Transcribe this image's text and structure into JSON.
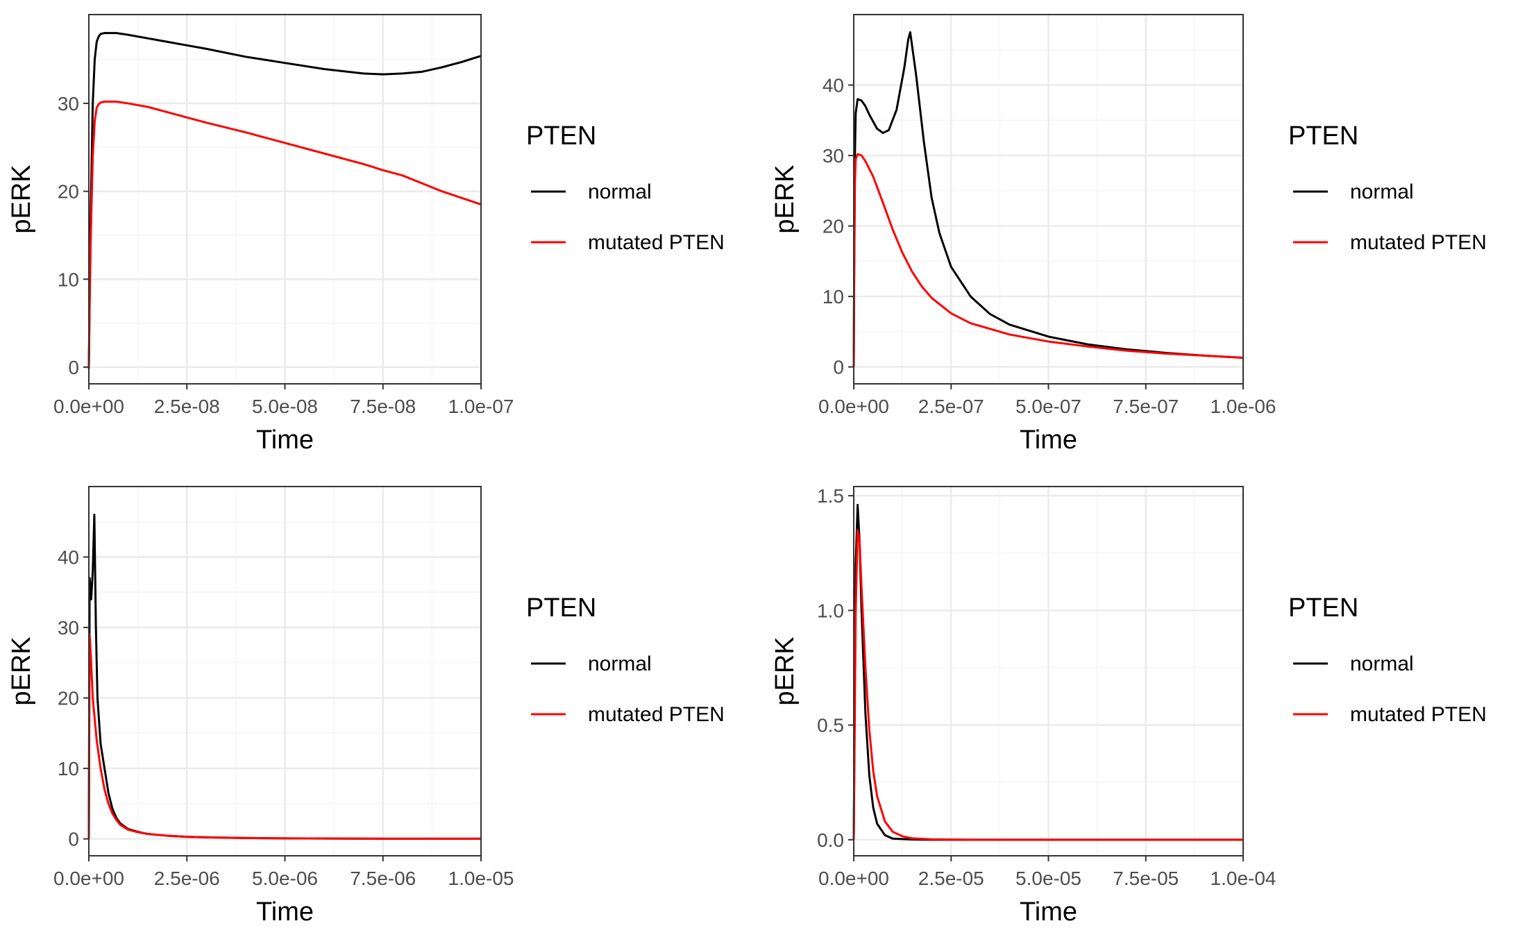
{
  "colors": {
    "normal": "#000000",
    "mutated_PTEN": "#ff0000",
    "panel_background": "#ffffff",
    "grid_major": "#ebebeb",
    "grid_minor": "#f5f5f5",
    "border": "#333333"
  },
  "chart_data": [
    {
      "type": "line",
      "xlabel": "Time",
      "ylabel": "pERK",
      "xlim": [
        0,
        1e-07
      ],
      "ylim": [
        -1.9,
        40.1
      ],
      "x_ticks": [
        0,
        2.5e-08,
        5e-08,
        7.5e-08,
        1e-07
      ],
      "x_tick_labels": [
        "0.0e+00",
        "2.5e-08",
        "5.0e-08",
        "7.5e-08",
        "1.0e-07"
      ],
      "y_ticks": [
        0,
        10,
        20,
        30
      ],
      "y_tick_labels": [
        "0",
        "10",
        "20",
        "30"
      ],
      "grid": true,
      "legend": {
        "title": "PTEN",
        "position": "right",
        "entries": [
          "normal",
          "mutated PTEN"
        ]
      },
      "series": [
        {
          "name": "normal",
          "color": "#000000",
          "x": [
            0,
            2e-10,
            5e-10,
            1e-09,
            1.5e-09,
            2e-09,
            2.5e-09,
            3e-09,
            4e-09,
            5e-09,
            7e-09,
            1e-08,
            1.5e-08,
            2e-08,
            2.5e-08,
            3e-08,
            4e-08,
            5e-08,
            6e-08,
            7e-08,
            7.5e-08,
            8e-08,
            8.5e-08,
            9e-08,
            9.5e-08,
            1e-07
          ],
          "y": [
            -0.2,
            8,
            18,
            30,
            35,
            37,
            37.6,
            37.9,
            38.0,
            38.0,
            38.0,
            37.8,
            37.4,
            37.0,
            36.6,
            36.2,
            35.3,
            34.6,
            33.9,
            33.4,
            33.3,
            33.4,
            33.6,
            34.1,
            34.7,
            35.4
          ]
        },
        {
          "name": "mutated PTEN",
          "color": "#ff0000",
          "x": [
            0,
            2e-10,
            5e-10,
            1e-09,
            1.5e-09,
            2e-09,
            2.5e-09,
            3e-09,
            4e-09,
            5e-09,
            7e-09,
            1e-08,
            1.5e-08,
            2e-08,
            2.5e-08,
            3e-08,
            4e-08,
            5e-08,
            6e-08,
            7e-08,
            7.5e-08,
            8e-08,
            9e-08,
            1e-07
          ],
          "y": [
            -0.2,
            7,
            15,
            24,
            28,
            29.5,
            29.9,
            30.1,
            30.2,
            30.2,
            30.2,
            30.0,
            29.6,
            29.0,
            28.4,
            27.8,
            26.7,
            25.5,
            24.3,
            23.1,
            22.4,
            21.8,
            20.0,
            18.5
          ]
        }
      ]
    },
    {
      "type": "line",
      "xlabel": "Time",
      "ylabel": "pERK",
      "xlim": [
        0,
        1e-06
      ],
      "ylim": [
        -2.4,
        50.0
      ],
      "x_ticks": [
        0,
        2.5e-07,
        5e-07,
        7.5e-07,
        1e-06
      ],
      "x_tick_labels": [
        "0.0e+00",
        "2.5e-07",
        "5.0e-07",
        "7.5e-07",
        "1.0e-06"
      ],
      "y_ticks": [
        0,
        10,
        20,
        30,
        40
      ],
      "y_tick_labels": [
        "0",
        "10",
        "20",
        "30",
        "40"
      ],
      "grid": true,
      "legend": {
        "title": "PTEN",
        "position": "right",
        "entries": [
          "normal",
          "mutated PTEN"
        ]
      },
      "series": [
        {
          "name": "normal",
          "color": "#000000",
          "x": [
            0,
            1e-09,
            3e-09,
            5e-09,
            1e-08,
            2e-08,
            3e-08,
            4e-08,
            6e-08,
            7.5e-08,
            9e-08,
            1.1e-07,
            1.3e-07,
            1.4e-07,
            1.45e-07,
            1.6e-07,
            1.8e-07,
            2e-07,
            2.2e-07,
            2.5e-07,
            3e-07,
            3.5e-07,
            4e-07,
            5e-07,
            6e-07,
            7e-07,
            8e-07,
            9e-07,
            1e-06
          ],
          "y": [
            0,
            12,
            30,
            36,
            38,
            37.8,
            37,
            35.8,
            33.8,
            33.2,
            33.6,
            36.5,
            42.5,
            46.5,
            47.5,
            41.5,
            32,
            24,
            19,
            14.2,
            10,
            7.5,
            6,
            4.3,
            3.2,
            2.5,
            2.0,
            1.6,
            1.3
          ]
        },
        {
          "name": "mutated PTEN",
          "color": "#ff0000",
          "x": [
            0,
            1e-09,
            3e-09,
            5e-09,
            1e-08,
            2e-08,
            3e-08,
            5e-08,
            7.5e-08,
            1e-07,
            1.25e-07,
            1.5e-07,
            1.75e-07,
            2e-07,
            2.5e-07,
            3e-07,
            4e-07,
            5e-07,
            6e-07,
            7e-07,
            8e-07,
            9e-07,
            1e-06
          ],
          "y": [
            0,
            12,
            26,
            29.5,
            30.2,
            30,
            29.2,
            27,
            23.3,
            19.5,
            16.2,
            13.5,
            11.4,
            9.8,
            7.6,
            6.2,
            4.6,
            3.6,
            2.9,
            2.3,
            1.9,
            1.6,
            1.3
          ]
        }
      ]
    },
    {
      "type": "line",
      "xlabel": "Time",
      "ylabel": "pERK",
      "xlim": [
        0,
        1e-05
      ],
      "ylim": [
        -2.4,
        50.0
      ],
      "x_ticks": [
        0,
        2.5e-06,
        5e-06,
        7.5e-06,
        1e-05
      ],
      "x_tick_labels": [
        "0.0e+00",
        "2.5e-06",
        "5.0e-06",
        "7.5e-06",
        "1.0e-05"
      ],
      "y_ticks": [
        0,
        10,
        20,
        30,
        40
      ],
      "y_tick_labels": [
        "0",
        "10",
        "20",
        "30",
        "40"
      ],
      "grid": true,
      "legend": {
        "title": "PTEN",
        "position": "right",
        "entries": [
          "normal",
          "mutated PTEN"
        ]
      },
      "series": [
        {
          "name": "normal",
          "color": "#000000",
          "x": [
            0,
            2e-08,
            6e-08,
            1e-07,
            1.4e-07,
            1.8e-07,
            2.2e-07,
            3e-07,
            4e-07,
            5e-07,
            6e-07,
            7e-07,
            8e-07,
            1e-06,
            1.25e-06,
            1.5e-06,
            2e-06,
            2.5e-06,
            3e-06,
            4e-06,
            5e-06,
            7.5e-06,
            1e-05
          ],
          "y": [
            0,
            37,
            34,
            38,
            46,
            30,
            20,
            13.5,
            10,
            6.5,
            4.3,
            3.0,
            2.2,
            1.4,
            1.0,
            0.7,
            0.45,
            0.3,
            0.22,
            0.12,
            0.07,
            0.03,
            0.02
          ]
        },
        {
          "name": "mutated PTEN",
          "color": "#ff0000",
          "x": [
            0,
            2e-08,
            5e-08,
            1e-07,
            2e-07,
            3e-07,
            4e-07,
            5e-07,
            6e-07,
            7e-07,
            8e-07,
            1e-06,
            1.25e-06,
            1.5e-06,
            2e-06,
            2.5e-06,
            3e-06,
            4e-06,
            5e-06,
            7.5e-06,
            1e-05
          ],
          "y": [
            0,
            29,
            26,
            20,
            14,
            10,
            7,
            5,
            3.6,
            2.7,
            2.0,
            1.3,
            0.95,
            0.7,
            0.45,
            0.3,
            0.22,
            0.12,
            0.07,
            0.03,
            0.02
          ]
        }
      ]
    },
    {
      "type": "line",
      "xlabel": "Time",
      "ylabel": "pERK",
      "xlim": [
        0,
        0.0001
      ],
      "ylim": [
        -0.07,
        1.54
      ],
      "x_ticks": [
        0,
        2.5e-05,
        5e-05,
        7.5e-05,
        0.0001
      ],
      "x_tick_labels": [
        "0.0e+00",
        "2.5e-05",
        "5.0e-05",
        "7.5e-05",
        "1.0e-04"
      ],
      "y_ticks": [
        0,
        0.5,
        1.0,
        1.5
      ],
      "y_tick_labels": [
        "0.0",
        "0.5",
        "1.0",
        "1.5"
      ],
      "grid": true,
      "legend": {
        "title": "PTEN",
        "position": "right",
        "entries": [
          "normal",
          "mutated PTEN"
        ]
      },
      "series": [
        {
          "name": "normal",
          "color": "#000000",
          "x": [
            0,
            5e-07,
            1e-06,
            1.5e-06,
            2e-06,
            3e-06,
            4e-06,
            5e-06,
            6e-06,
            8e-06,
            1e-05,
            1.5e-05,
            2e-05,
            3e-05,
            5e-05,
            7.5e-05,
            0.0001
          ],
          "y": [
            0,
            1.2,
            1.46,
            1.3,
            1.0,
            0.55,
            0.28,
            0.14,
            0.07,
            0.02,
            0.005,
            0.001,
            0,
            0,
            0,
            0,
            0
          ]
        },
        {
          "name": "mutated PTEN",
          "color": "#ff0000",
          "x": [
            0,
            5e-07,
            1e-06,
            1.5e-06,
            2e-06,
            3e-06,
            4e-06,
            5e-06,
            6e-06,
            8e-06,
            1e-05,
            1.25e-05,
            1.5e-05,
            2e-05,
            2.5e-05,
            3e-05,
            5e-05,
            7.5e-05,
            0.0001
          ],
          "y": [
            0,
            1.0,
            1.35,
            1.3,
            1.1,
            0.75,
            0.48,
            0.3,
            0.19,
            0.08,
            0.035,
            0.015,
            0.006,
            0.002,
            0.001,
            0,
            0,
            0,
            0
          ]
        }
      ]
    }
  ]
}
